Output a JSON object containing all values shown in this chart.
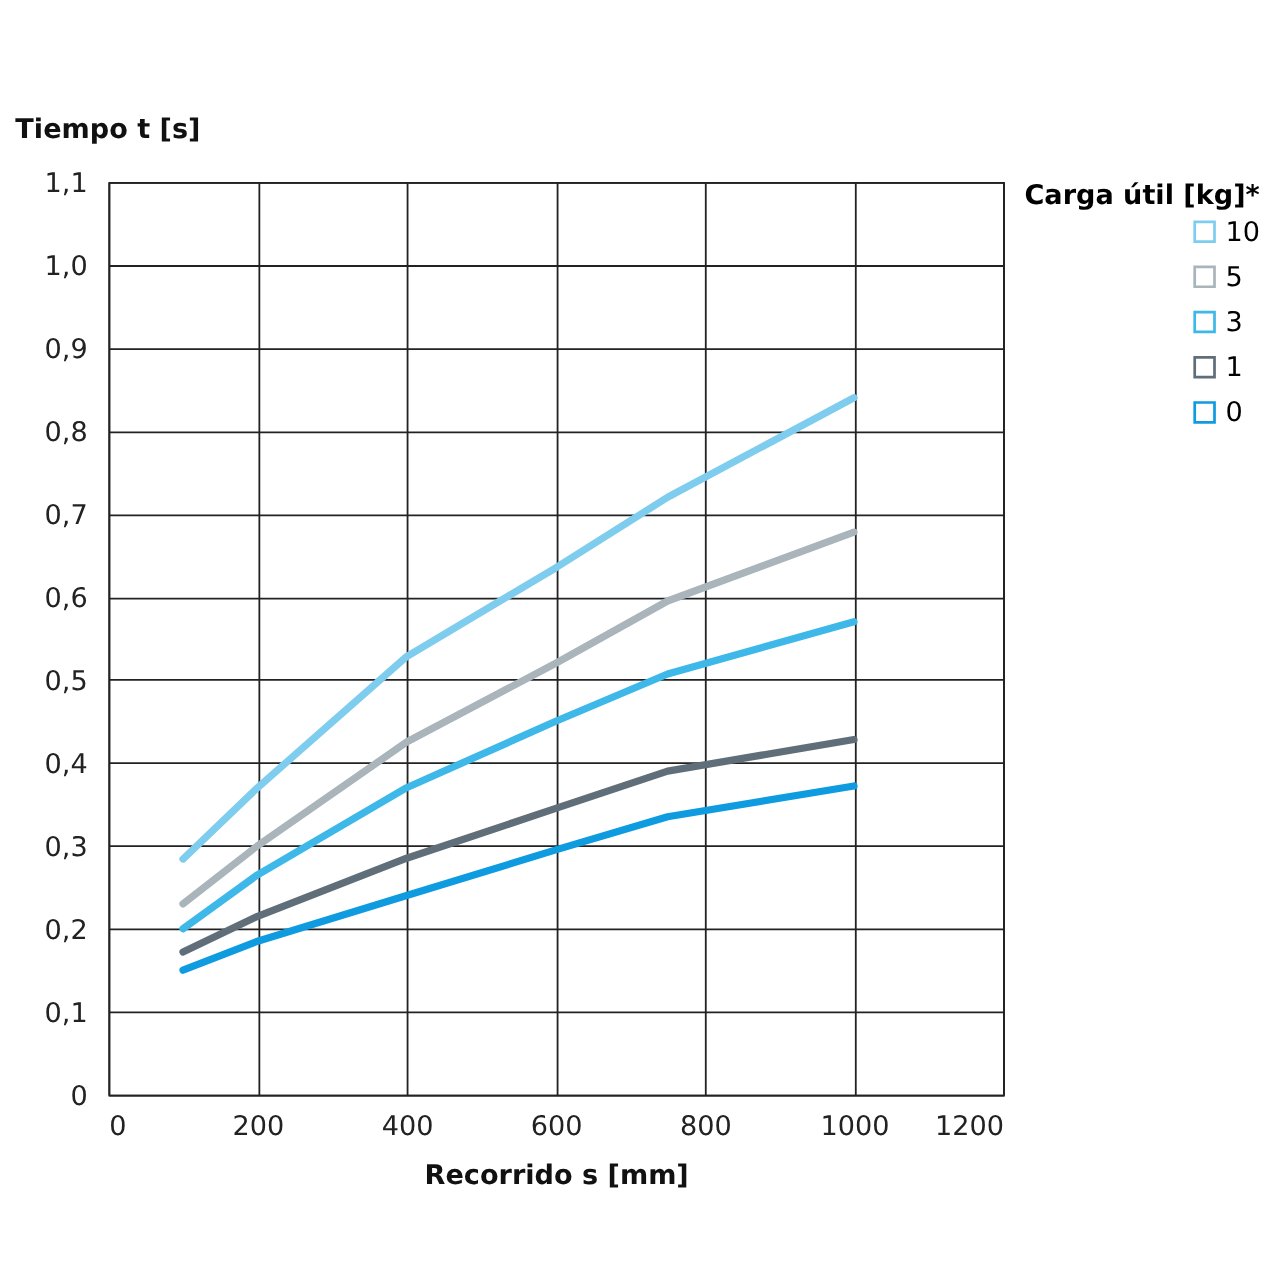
{
  "chart_data": {
    "type": "line",
    "xlabel": "Recorrido s [mm]",
    "ylabel": "Tiempo t [s]",
    "legend_title": "Carga útil [kg]*",
    "x": [
      100,
      200,
      400,
      600,
      750,
      1000
    ],
    "series": [
      {
        "name": "10",
        "color": "#7fcdee",
        "values": [
          0.284,
          0.37,
          0.528,
          0.635,
          0.72,
          0.84
        ]
      },
      {
        "name": "5",
        "color": "#aab4bb",
        "values": [
          0.23,
          0.3,
          0.425,
          0.52,
          0.595,
          0.678
        ]
      },
      {
        "name": "3",
        "color": "#3db8e8",
        "values": [
          0.2,
          0.265,
          0.37,
          0.45,
          0.507,
          0.57
        ]
      },
      {
        "name": "1",
        "color": "#5f6e78",
        "values": [
          0.172,
          0.215,
          0.285,
          0.345,
          0.39,
          0.428
        ]
      },
      {
        "name": "0",
        "color": "#0e9be0",
        "values": [
          0.15,
          0.185,
          0.24,
          0.295,
          0.335,
          0.372
        ]
      }
    ],
    "xlim": [
      0,
      1200
    ],
    "xticks": [
      0,
      200,
      400,
      600,
      800,
      1000,
      1200
    ],
    "ylim": [
      0,
      1.1
    ],
    "yticks": [
      0,
      {
        "value": 0.1,
        "label": "0,1"
      },
      {
        "value": 0.2,
        "label": "0,2"
      },
      {
        "value": 0.3,
        "label": "0,3"
      },
      {
        "value": 0.4,
        "label": "0,4"
      },
      {
        "value": 0.5,
        "label": "0,5"
      },
      {
        "value": 0.6,
        "label": "0,6"
      },
      {
        "value": 0.7,
        "label": "0,7"
      },
      {
        "value": 0.8,
        "label": "0,8"
      },
      {
        "value": 0.9,
        "label": "0,9"
      },
      {
        "value": 1.0,
        "label": "1,0"
      },
      {
        "value": 1.1,
        "label": "1,1"
      }
    ],
    "grid": true,
    "legend": "top right",
    "marker": "none",
    "line_style": "solid"
  }
}
